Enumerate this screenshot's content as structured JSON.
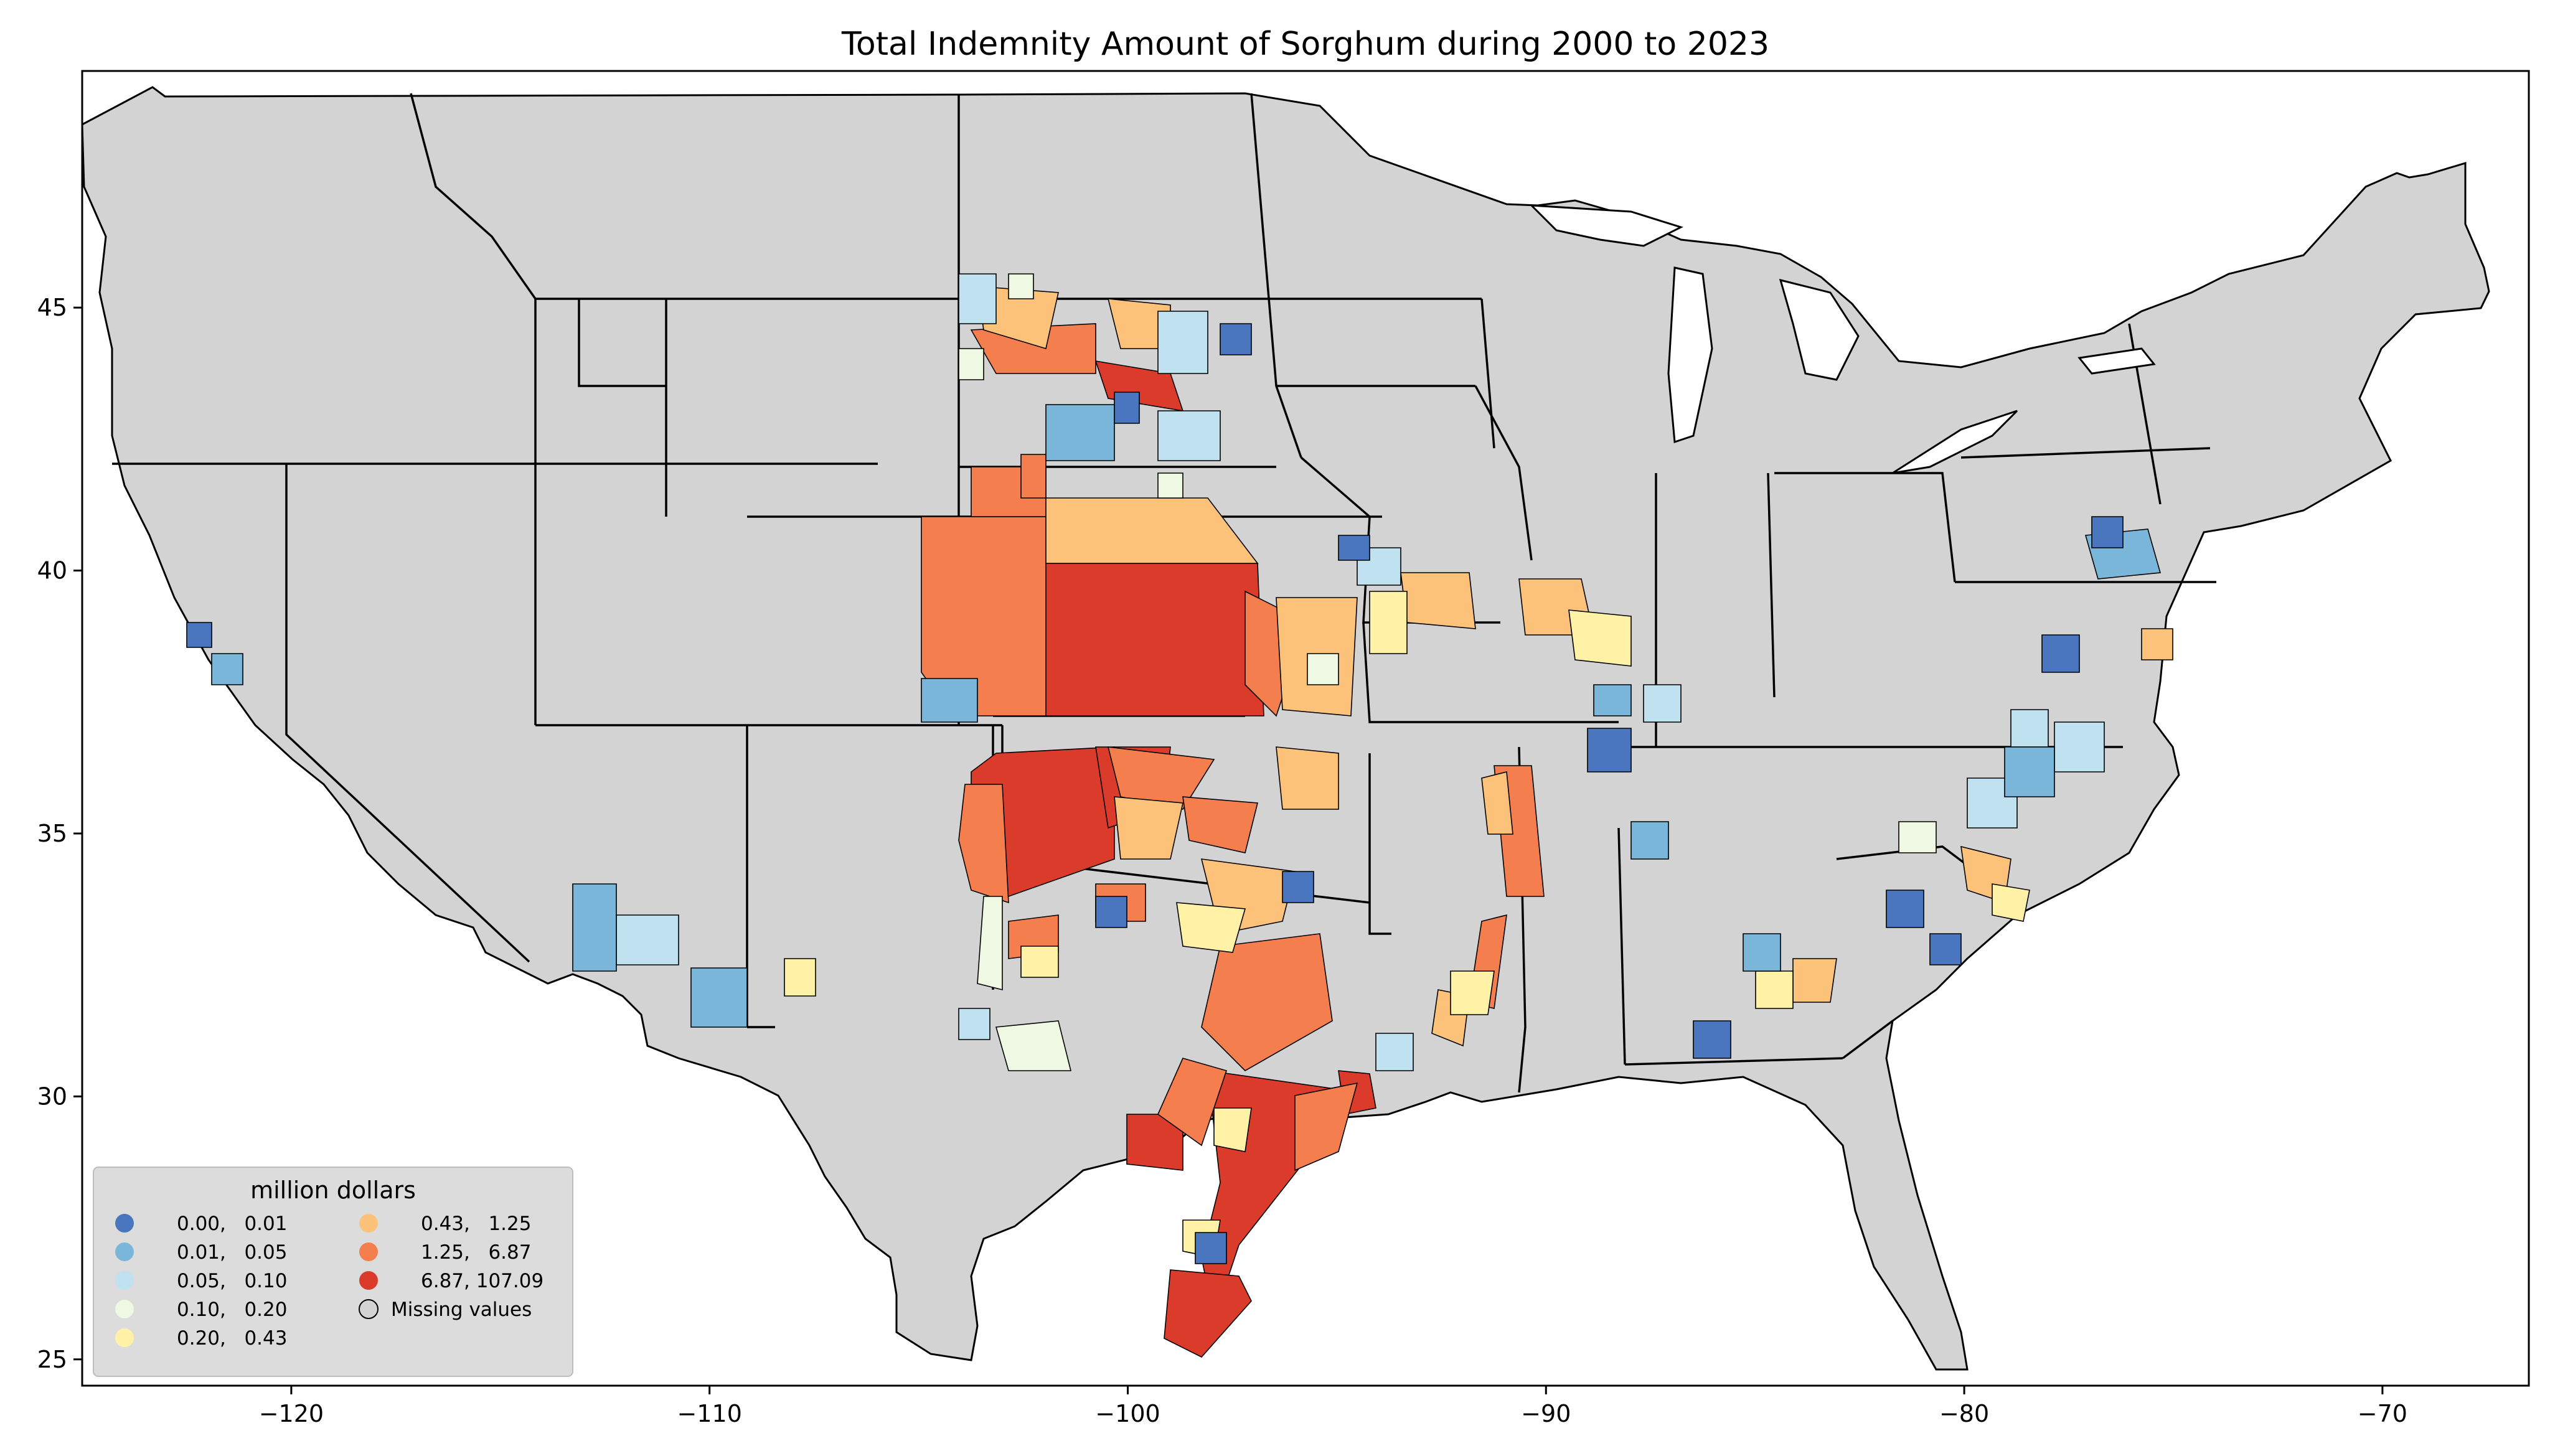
{
  "title": "Total Indemnity Amount of Sorghum during 2000 to 2023",
  "map_data": {
    "type": "choropleth",
    "region": "contiguous United States, county level",
    "x_ticks": [
      -120,
      -110,
      -100,
      -90,
      -80,
      -70
    ],
    "x_tick_labels": [
      "−120",
      "−110",
      "−100",
      "−90",
      "−80",
      "−70"
    ],
    "y_ticks": [
      25,
      30,
      35,
      40,
      45
    ],
    "y_tick_labels": [
      "25",
      "30",
      "35",
      "40",
      "45"
    ],
    "xlim": [
      -125,
      -66.5
    ],
    "ylim": [
      24.5,
      49.5
    ],
    "background_color": "#d3d3d3",
    "border_color": "#000000",
    "legend": {
      "title": "million dollars",
      "placement": "lower-left",
      "classes": [
        {
          "label": "0.00,   0.01",
          "color": "#4a76bf"
        },
        {
          "label": "0.01,   0.05",
          "color": "#7ab6d9"
        },
        {
          "label": "0.05,   0.10",
          "color": "#c0e1ef"
        },
        {
          "label": "0.10,   0.20",
          "color": "#eef8e2"
        },
        {
          "label": "0.20,   0.43",
          "color": "#fff1a6"
        },
        {
          "label": "0.43,   1.25",
          "color": "#fdc27a"
        },
        {
          "label": "1.25,   6.87",
          "color": "#f47e4d"
        },
        {
          "label": "6.87, 107.09",
          "color": "#db3b2a"
        },
        {
          "label": "Missing values",
          "color": "#d3d3d3"
        }
      ]
    }
  }
}
